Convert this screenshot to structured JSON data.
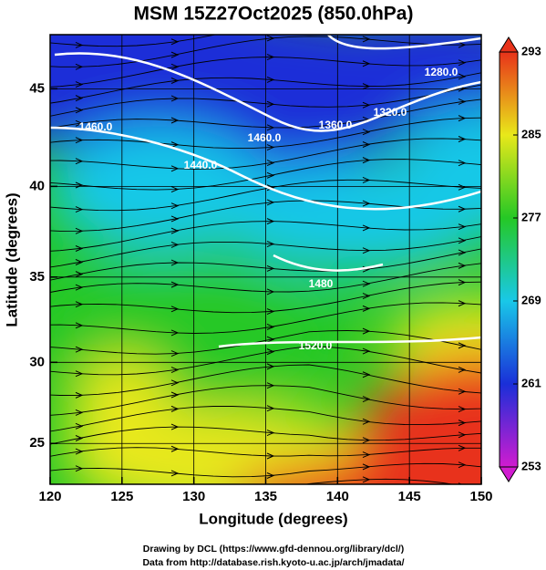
{
  "chart_data": {
    "type": "map",
    "title": "MSM 15Z27Oct2025 (850.0hPa)",
    "x_label": "Longitude (degrees)",
    "y_label": "Latitude  (degrees)",
    "projection": "mercator",
    "xlim": [
      120,
      150
    ],
    "xticks": [
      120,
      125,
      130,
      135,
      140,
      145,
      150
    ],
    "ylim": [
      22.4,
      47.6
    ],
    "yticks": [
      25,
      30,
      35,
      40,
      45
    ],
    "grid": true,
    "colorbar": {
      "lim": [
        253,
        293
      ],
      "ticks": [
        253,
        261,
        269,
        277,
        285,
        293
      ],
      "colors": [
        "#d01cd0",
        "#1a2fd8",
        "#19c8e8",
        "#25c825",
        "#e8e81a",
        "#e8321a"
      ]
    },
    "contour_labels": [
      "1460.0",
      "1460.0",
      "1440.0",
      "1360.0",
      "1320.0",
      "1280.0",
      "1480",
      "1520.0"
    ],
    "credits": [
      "Drawing by DCL (https://www.gfd-dennou.org/library/dcl/)",
      "Data from http://database.rish.kyoto-u.ac.jp/arch/jmadata/"
    ]
  }
}
